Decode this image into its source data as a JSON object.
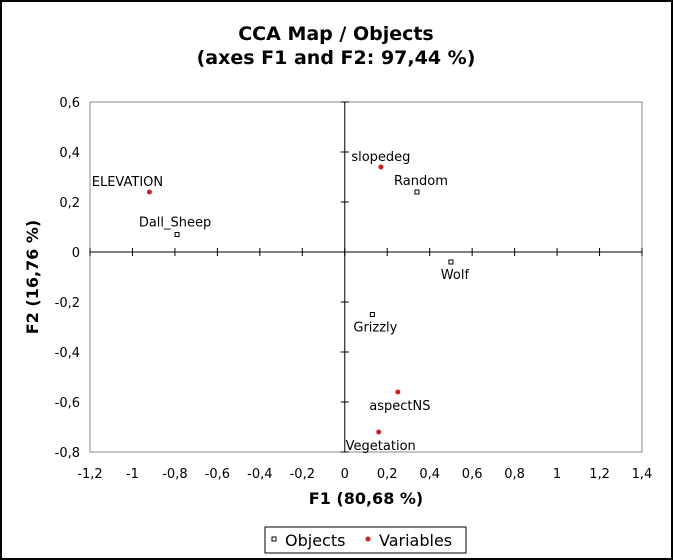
{
  "chart_data": {
    "type": "scatter",
    "title": "CCA Map / Objects",
    "subtitle": "(axes F1 and F2: 97,44 %)",
    "xlabel": "F1 (80,68 %)",
    "ylabel": "F2 (16,76 %)",
    "xlim": [
      -1.2,
      1.4
    ],
    "ylim": [
      -0.8,
      0.6
    ],
    "xticks": [
      "-1,2",
      "-1",
      "-0,8",
      "-0,6",
      "-0,4",
      "-0,2",
      "0",
      "0,2",
      "0,4",
      "0,6",
      "0,8",
      "1",
      "1,2",
      "1,4"
    ],
    "yticks": [
      "0,6",
      "0,4",
      "0,2",
      "0",
      "-0,2",
      "-0,4",
      "-0,6",
      "-0,8"
    ],
    "grid": false,
    "legend_position": "bottom",
    "series": [
      {
        "name": "Objects",
        "marker": "open-square",
        "color": "#000000",
        "points": [
          {
            "label": "Dall_Sheep",
            "x": -0.79,
            "y": 0.07
          },
          {
            "label": "Random",
            "x": 0.34,
            "y": 0.24
          },
          {
            "label": "Wolf",
            "x": 0.5,
            "y": -0.04
          },
          {
            "label": "Grizzly",
            "x": 0.13,
            "y": -0.25
          }
        ]
      },
      {
        "name": "Variables",
        "marker": "dot",
        "color": "#cc1f1f",
        "points": [
          {
            "label": "ELEVATION",
            "x": -0.92,
            "y": 0.24
          },
          {
            "label": "slopedeg",
            "x": 0.17,
            "y": 0.34
          },
          {
            "label": "aspectNS",
            "x": 0.25,
            "y": -0.56
          },
          {
            "label": "Vegetation",
            "x": 0.16,
            "y": -0.72
          }
        ]
      }
    ]
  }
}
